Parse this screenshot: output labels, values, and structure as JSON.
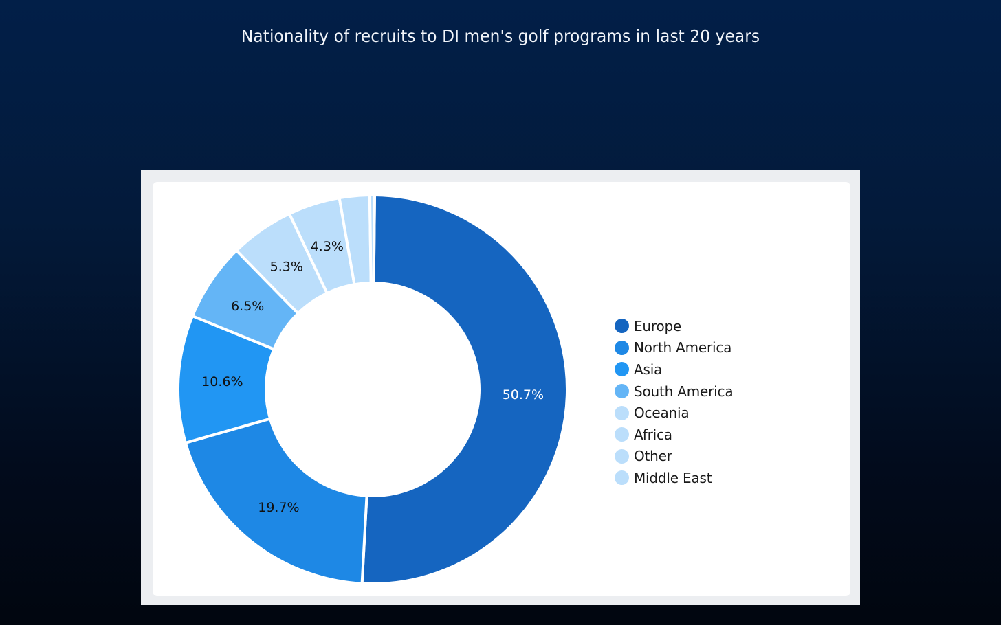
{
  "page": {
    "title": "Nationality of recruits to DI men's golf programs in last 20 years"
  },
  "chart_data": {
    "type": "pie",
    "variant": "donut",
    "title": "Nationality of recruits to DI men's golf programs in last 20 years",
    "categories": [
      "Europe",
      "North America",
      "Asia",
      "South America",
      "Oceania",
      "Africa",
      "Other",
      "Middle East"
    ],
    "values": [
      50.7,
      19.7,
      10.6,
      6.5,
      5.3,
      4.3,
      2.5,
      0.4
    ],
    "data_labels": [
      "50.7%",
      "19.7%",
      "10.6%",
      "6.5%",
      "5.3%",
      "4.3%",
      "",
      ""
    ],
    "colors": [
      "#1565c0",
      "#1e88e5",
      "#2196f3",
      "#64b5f6",
      "#bbdefb",
      "#bbdefb",
      "#bbdefb",
      "#bbdefb"
    ],
    "label_colors": [
      "#ffffff",
      "#111111",
      "#111111",
      "#111111",
      "#111111",
      "#111111",
      "#111111",
      "#111111"
    ],
    "legend_position": "right",
    "start_angle_deg": 0.6,
    "direction": "clockwise",
    "units": "percent"
  },
  "legend": {
    "items": [
      {
        "label": "Europe",
        "color": "#1565c0"
      },
      {
        "label": "North America",
        "color": "#1e88e5"
      },
      {
        "label": "Asia",
        "color": "#2196f3"
      },
      {
        "label": "South America",
        "color": "#64b5f6"
      },
      {
        "label": "Oceania",
        "color": "#bbdefb"
      },
      {
        "label": "Africa",
        "color": "#bbdefb"
      },
      {
        "label": "Other",
        "color": "#bbdefb"
      },
      {
        "label": "Middle East",
        "color": "#bbdefb"
      }
    ]
  }
}
